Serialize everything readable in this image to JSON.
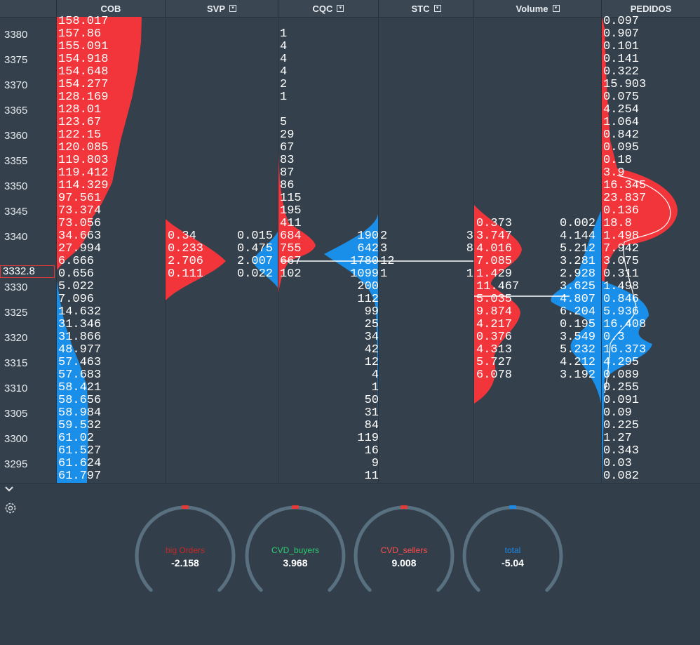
{
  "headers": [
    {
      "label": "COB",
      "icon": false
    },
    {
      "label": "SVP",
      "icon": true
    },
    {
      "label": "CQC",
      "icon": true
    },
    {
      "label": "STC",
      "icon": true
    },
    {
      "label": "Volume",
      "icon": true
    },
    {
      "label": "PEDIDOS",
      "icon": false
    }
  ],
  "prices": [
    "3380",
    "3375",
    "3370",
    "3365",
    "3360",
    "3355",
    "3350",
    "3345",
    "3340",
    "3330",
    "3325",
    "3320",
    "3315",
    "3310",
    "3305",
    "3300",
    "3295"
  ],
  "current_price": "3332.8",
  "cob": [
    "158.017",
    "157.86",
    "155.091",
    "154.918",
    "154.648",
    "154.277",
    "128.169",
    "128.01",
    "123.67",
    "122.15",
    "120.085",
    "119.803",
    "119.412",
    "114.329",
    "97.561",
    "73.374",
    "73.056",
    "34.663",
    "27.994",
    "6.666",
    "0.656",
    "5.022",
    "7.096",
    "14.632",
    "31.346",
    "31.866",
    "48.977",
    "57.463",
    "57.683",
    "58.421",
    "58.656",
    "58.984",
    "59.532",
    "61.02",
    "61.527",
    "61.624",
    "61.797"
  ],
  "svp": {
    "sell": [
      "0.34",
      "0.233",
      "2.706",
      "0.111"
    ],
    "buy": [
      "0.015",
      "0.475",
      "2.007",
      "0.022"
    ]
  },
  "cqc": [
    "1",
    "4",
    "4",
    "4",
    "2",
    "1",
    "",
    "5",
    "29",
    "67",
    "83",
    "87",
    "86",
    "115",
    "195",
    "411",
    "684",
    "755",
    "667",
    "102"
  ],
  "stc": {
    "left": [
      "190",
      "642",
      "1780",
      "1099",
      "200",
      "112",
      "99",
      "25",
      "34",
      "42",
      "12",
      "4",
      "1",
      "50",
      "31",
      "84",
      "119",
      "16",
      "9",
      "11"
    ],
    "right": [
      "2",
      "3",
      "12",
      "1"
    ]
  },
  "volume": {
    "row_prefix": [
      "3",
      "8",
      "",
      "1"
    ],
    "sell": [
      "0.373",
      "3.747",
      "4.016",
      "7.085",
      "1.429",
      "11.467",
      "5.035",
      "9.874",
      "4.217",
      "0.376",
      "4.313",
      "5.727",
      "6.078"
    ],
    "buy": [
      "0.002",
      "4.144",
      "5.212",
      "3.281",
      "2.928",
      "3.625",
      "4.807",
      "6.204",
      "0.195",
      "3.549",
      "5.232",
      "4.212",
      "3.192"
    ]
  },
  "pedidos": [
    "0.097",
    "0.907",
    "0.101",
    "0.141",
    "0.322",
    "15.903",
    "0.075",
    "4.254",
    "1.064",
    "0.842",
    "0.095",
    "0.18",
    "3.9",
    "16.345",
    "23.837",
    "0.136",
    "18.8",
    "1.498",
    "7.942",
    "3.075",
    "0.311",
    "1.498",
    "0.846",
    "5.936",
    "16.408",
    "0.3",
    "16.373",
    "4.295",
    "0.089",
    "0.255",
    "0.091",
    "0.09",
    "0.225",
    "1.27",
    "0.343",
    "0.03",
    "0.082"
  ],
  "gauges": [
    {
      "title": "big Orders",
      "value": "-2.158",
      "title_color": "#c62828",
      "marker_color": "#e53935"
    },
    {
      "title": "CVD_buyers",
      "value": "3.968",
      "title_color": "#2ecc71",
      "marker_color": "#e53935"
    },
    {
      "title": "CVD_sellers",
      "value": "9.008",
      "title_color": "#ff4d4d",
      "marker_color": "#e53935"
    },
    {
      "title": "total",
      "value": "-5.04",
      "title_color": "#1e88e5",
      "marker_color": "#1e88e5"
    }
  ],
  "colors": {
    "sell": "#f2353a",
    "buy": "#1a8fea",
    "background": "#34404b"
  },
  "icons": {
    "collapse": "chevron-down-icon",
    "settings": "gear-icon"
  }
}
